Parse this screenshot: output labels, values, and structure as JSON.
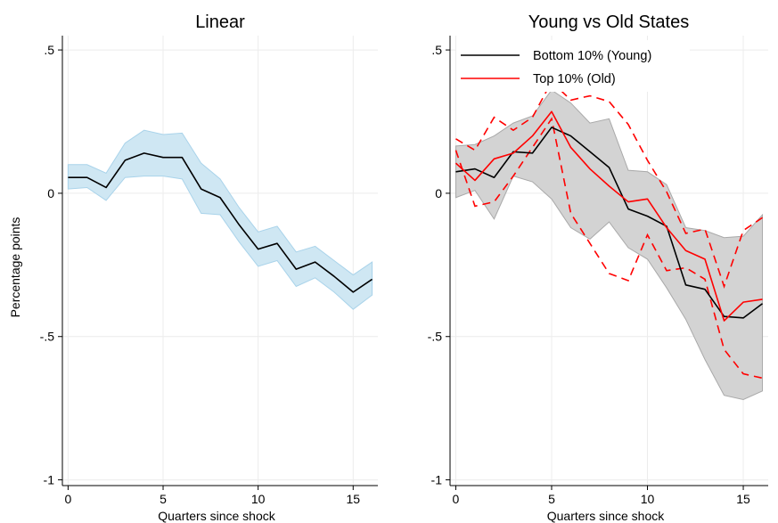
{
  "chart_data": [
    {
      "type": "line",
      "title": "Linear",
      "xlabel": "Quarters since shock",
      "ylabel": "Percentage points",
      "xlim": [
        -0.3,
        16.3
      ],
      "ylim": [
        -1.02,
        0.55
      ],
      "xticks": [
        0,
        5,
        10,
        15
      ],
      "yticks": [
        -1,
        -0.5,
        0,
        0.5
      ],
      "ytick_labels": [
        "-1",
        "-.5",
        "0",
        ".5"
      ],
      "grid": true,
      "band_color": "#cfe7f3",
      "band_edge_color": "#a9d3ea",
      "x": [
        0,
        1,
        2,
        3,
        4,
        5,
        6,
        7,
        8,
        9,
        10,
        11,
        12,
        13,
        14,
        15,
        16
      ],
      "series": [
        {
          "color": "#000000",
          "values": [
            0.055,
            0.055,
            0.02,
            0.115,
            0.14,
            0.125,
            0.125,
            0.015,
            -0.015,
            -0.11,
            -0.195,
            -0.175,
            -0.265,
            -0.24,
            -0.29,
            -0.345,
            -0.3
          ],
          "lower": [
            0.015,
            0.02,
            -0.025,
            0.055,
            0.06,
            0.06,
            0.05,
            -0.07,
            -0.075,
            -0.17,
            -0.255,
            -0.235,
            -0.325,
            -0.295,
            -0.345,
            -0.405,
            -0.355
          ],
          "upper": [
            0.1,
            0.1,
            0.07,
            0.175,
            0.22,
            0.205,
            0.21,
            0.105,
            0.05,
            -0.05,
            -0.135,
            -0.115,
            -0.205,
            -0.185,
            -0.235,
            -0.285,
            -0.24
          ]
        }
      ]
    },
    {
      "type": "line",
      "title": "Young vs Old States",
      "xlabel": "Quarters since shock",
      "ylabel": "",
      "xlim": [
        -0.3,
        16.3
      ],
      "ylim": [
        -1.02,
        0.55
      ],
      "xticks": [
        0,
        5,
        10,
        15
      ],
      "yticks": [
        -1,
        -0.5,
        0,
        0.5
      ],
      "ytick_labels": [
        "-1",
        "-.5",
        "0",
        ".5"
      ],
      "grid": true,
      "legend_position": "top-left",
      "band_color": "#d3d3d3",
      "band_edge_color": "#a9a9a9",
      "x": [
        0,
        1,
        2,
        3,
        4,
        5,
        6,
        7,
        8,
        9,
        10,
        11,
        12,
        13,
        14,
        15,
        16
      ],
      "band": {
        "lower": [
          -0.015,
          0.01,
          -0.09,
          0.06,
          0.04,
          -0.02,
          -0.12,
          -0.16,
          -0.1,
          -0.19,
          -0.23,
          -0.33,
          -0.44,
          -0.58,
          -0.705,
          -0.72,
          -0.69
        ],
        "upper": [
          0.165,
          0.17,
          0.2,
          0.245,
          0.27,
          0.36,
          0.315,
          0.245,
          0.26,
          0.08,
          0.075,
          0.03,
          -0.12,
          -0.13,
          -0.155,
          -0.15,
          -0.075
        ]
      },
      "series": [
        {
          "name": "Bottom 10% (Young)",
          "color": "#000000",
          "values": [
            0.075,
            0.085,
            0.055,
            0.145,
            0.14,
            0.23,
            0.2,
            0.145,
            0.09,
            -0.055,
            -0.08,
            -0.115,
            -0.32,
            -0.335,
            -0.43,
            -0.435,
            -0.385
          ]
        },
        {
          "name": "Top 10% (Old)",
          "color": "#ff0000",
          "values": [
            0.105,
            0.045,
            0.12,
            0.14,
            0.2,
            0.285,
            0.16,
            0.085,
            0.025,
            -0.03,
            -0.02,
            -0.12,
            -0.2,
            -0.23,
            -0.445,
            -0.38,
            -0.37
          ],
          "lower": [
            0.15,
            -0.045,
            -0.03,
            0.06,
            0.16,
            0.26,
            -0.07,
            -0.175,
            -0.28,
            -0.305,
            -0.145,
            -0.27,
            -0.26,
            -0.3,
            -0.545,
            -0.63,
            -0.645
          ],
          "upper": [
            0.19,
            0.15,
            0.265,
            0.22,
            0.265,
            0.39,
            0.325,
            0.34,
            0.32,
            0.24,
            0.115,
            0.005,
            -0.14,
            -0.125,
            -0.325,
            -0.13,
            -0.085
          ]
        }
      ]
    }
  ]
}
